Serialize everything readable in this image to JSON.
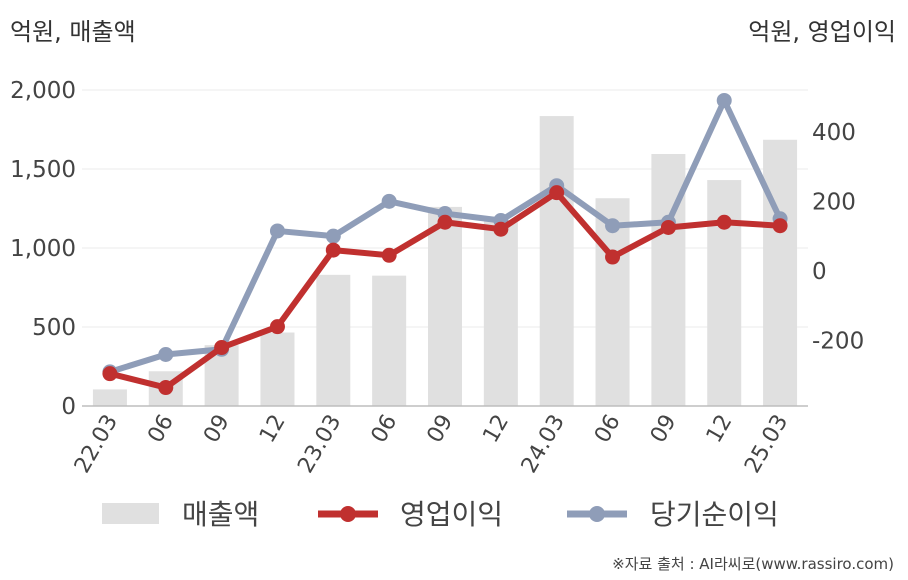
{
  "unit_left": "억원, 매출액",
  "unit_right": "억원, 영업이익",
  "source": "※자료 출처 : AI라씨로(www.rassiro.com)",
  "colors": {
    "revenue": "#e0e0e0",
    "operating": "#c0302f",
    "net": "#8f9db8"
  },
  "chart_data": {
    "type": "bar",
    "categories": [
      "22.03",
      "06",
      "09",
      "12",
      "23.03",
      "06",
      "09",
      "12",
      "24.03",
      "06",
      "09",
      "12",
      "25.03"
    ],
    "series": [
      {
        "name": "매출액",
        "type": "bar",
        "axis": "left",
        "values": [
          105,
          220,
          385,
          465,
          830,
          825,
          1260,
          1175,
          1835,
          1315,
          1595,
          1430,
          1685
        ]
      },
      {
        "name": "영업이익",
        "type": "line",
        "axis": "right",
        "values": [
          -295,
          -335,
          -220,
          -160,
          60,
          45,
          140,
          120,
          225,
          40,
          125,
          140,
          130
        ]
      },
      {
        "name": "당기순이익",
        "type": "line",
        "axis": "right",
        "values": [
          -290,
          -240,
          -225,
          115,
          100,
          200,
          165,
          145,
          245,
          130,
          140,
          490,
          150
        ]
      }
    ],
    "y_left": {
      "ticks": [
        "0",
        "500",
        "1,000",
        "1,500",
        "2,000"
      ],
      "values": [
        0,
        500,
        1000,
        1500,
        2000
      ],
      "ylim": [
        0,
        2000
      ]
    },
    "y_right": {
      "ticks": [
        "-200",
        "0",
        "200",
        "400"
      ],
      "values": [
        -200,
        0,
        200,
        400
      ],
      "ylim": [
        -388,
        520
      ]
    },
    "grid": true,
    "legend_position": "bottom"
  }
}
